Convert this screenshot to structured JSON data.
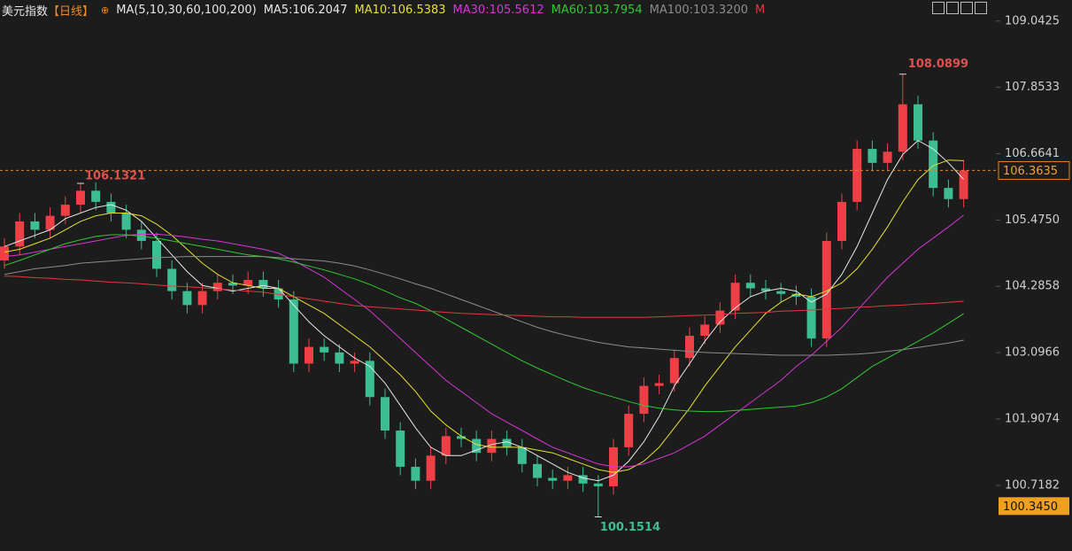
{
  "chart_data": {
    "type": "candlestick",
    "title": "美元指数",
    "period": "【日线】",
    "indicator": "MA(5,10,30,60,100,200)",
    "ylim": [
      99.54,
      109.42
    ],
    "yticks": [
      109.0425,
      107.8533,
      106.6641,
      105.475,
      104.2858,
      103.0966,
      101.9074,
      100.7182
    ],
    "ytick_labels": [
      "109.0425",
      "107.8533",
      "106.6641",
      "105.4750",
      "104.2858",
      "103.0966",
      "101.9074",
      "100.7182"
    ],
    "up_color": "#ef3f46",
    "down_color": "#3dbd92",
    "open": [
      104.75,
      105.0,
      105.45,
      105.3,
      105.55,
      105.75,
      106.0,
      105.8,
      105.6,
      105.3,
      105.1,
      104.6,
      104.2,
      103.95,
      104.2,
      104.35,
      104.3,
      104.4,
      104.25,
      104.05,
      102.9,
      103.2,
      103.1,
      102.9,
      102.95,
      102.3,
      101.7,
      101.05,
      100.8,
      101.25,
      101.6,
      101.55,
      101.3,
      101.55,
      101.4,
      101.1,
      100.85,
      100.8,
      100.9,
      100.75,
      100.7,
      101.4,
      102.0,
      102.5,
      102.55,
      103.0,
      103.4,
      103.6,
      103.85,
      104.35,
      104.25,
      104.2,
      104.15,
      104.1,
      103.35,
      105.1,
      105.8,
      106.75,
      106.5,
      106.7,
      107.55,
      106.9,
      106.05,
      105.85
    ],
    "high": [
      105.15,
      105.6,
      105.6,
      105.7,
      105.9,
      106.1321,
      106.15,
      105.95,
      105.75,
      105.45,
      105.25,
      104.75,
      104.35,
      104.35,
      104.5,
      104.5,
      104.55,
      104.55,
      104.4,
      104.2,
      103.35,
      103.35,
      103.25,
      103.1,
      103.1,
      102.45,
      101.85,
      101.2,
      101.4,
      101.75,
      101.75,
      101.7,
      101.7,
      101.7,
      101.55,
      101.25,
      101.0,
      101.05,
      101.05,
      100.9,
      101.55,
      102.15,
      102.65,
      102.7,
      103.15,
      103.55,
      103.75,
      104.0,
      104.5,
      104.5,
      104.4,
      104.35,
      104.3,
      104.25,
      105.25,
      105.95,
      106.9,
      106.9,
      106.85,
      108.0899,
      107.7,
      107.05,
      106.2,
      106.55
    ],
    "low": [
      104.6,
      104.85,
      105.15,
      105.15,
      105.4,
      105.6,
      105.65,
      105.45,
      105.15,
      104.95,
      104.45,
      104.05,
      103.8,
      103.8,
      104.05,
      104.15,
      104.15,
      104.1,
      103.9,
      102.75,
      102.75,
      102.95,
      102.75,
      102.75,
      102.15,
      101.55,
      100.9,
      100.65,
      100.65,
      101.1,
      101.4,
      101.15,
      101.15,
      101.25,
      100.95,
      100.7,
      100.65,
      100.65,
      100.6,
      100.1514,
      100.55,
      101.25,
      101.85,
      102.35,
      102.4,
      102.85,
      103.25,
      103.45,
      103.7,
      104.1,
      104.05,
      104.0,
      103.95,
      103.2,
      103.2,
      104.95,
      105.65,
      106.35,
      106.35,
      106.55,
      106.75,
      105.9,
      105.7,
      105.7
    ],
    "close": [
      105.0,
      105.45,
      105.3,
      105.55,
      105.75,
      106.0,
      105.8,
      105.6,
      105.3,
      105.1,
      104.6,
      104.2,
      103.95,
      104.2,
      104.35,
      104.3,
      104.4,
      104.25,
      104.05,
      102.9,
      103.2,
      103.1,
      102.9,
      102.95,
      102.3,
      101.7,
      101.05,
      100.8,
      101.25,
      101.6,
      101.55,
      101.3,
      101.55,
      101.4,
      101.1,
      100.85,
      100.8,
      100.9,
      100.75,
      100.7,
      101.4,
      102.0,
      102.5,
      102.55,
      103.0,
      103.4,
      103.6,
      103.85,
      104.35,
      104.25,
      104.2,
      104.15,
      104.1,
      103.35,
      105.1,
      105.8,
      106.75,
      106.5,
      106.7,
      107.55,
      106.9,
      106.05,
      105.85,
      106.3635
    ],
    "series": [
      {
        "name": "MA5:106.2047",
        "color": "#e8e8e8",
        "values": [
          105.0,
          105.1,
          105.2,
          105.3,
          105.5,
          105.6,
          105.7,
          105.75,
          105.65,
          105.45,
          105.15,
          104.85,
          104.55,
          104.3,
          104.25,
          104.2,
          104.25,
          104.3,
          104.25,
          103.95,
          103.65,
          103.4,
          103.2,
          103.0,
          102.85,
          102.55,
          102.15,
          101.75,
          101.4,
          101.25,
          101.25,
          101.35,
          101.45,
          101.5,
          101.4,
          101.25,
          101.1,
          100.95,
          100.85,
          100.8,
          100.9,
          101.15,
          101.5,
          101.95,
          102.5,
          102.9,
          103.3,
          103.65,
          103.9,
          104.1,
          104.2,
          104.25,
          104.2,
          104.0,
          104.15,
          104.5,
          105.0,
          105.6,
          106.2,
          106.65,
          106.9,
          106.75,
          106.5,
          106.2047
        ]
      },
      {
        "name": "MA10:106.5383",
        "color": "#e6e032",
        "values": [
          104.9,
          104.95,
          105.05,
          105.15,
          105.3,
          105.45,
          105.55,
          105.6,
          105.6,
          105.55,
          105.4,
          105.2,
          104.95,
          104.7,
          104.5,
          104.35,
          104.3,
          104.25,
          104.25,
          104.1,
          103.95,
          103.8,
          103.6,
          103.4,
          103.2,
          102.95,
          102.7,
          102.4,
          102.05,
          101.8,
          101.6,
          101.45,
          101.4,
          101.4,
          101.4,
          101.35,
          101.3,
          101.2,
          101.1,
          101.0,
          100.95,
          101.0,
          101.15,
          101.4,
          101.75,
          102.1,
          102.5,
          102.85,
          103.2,
          103.5,
          103.8,
          104.0,
          104.15,
          104.1,
          104.2,
          104.35,
          104.6,
          104.95,
          105.35,
          105.8,
          106.2,
          106.45,
          106.55,
          106.5383
        ]
      },
      {
        "name": "MA30:105.5612",
        "color": "#d636d6",
        "values": [
          104.82,
          104.85,
          104.9,
          104.95,
          105.0,
          105.05,
          105.1,
          105.15,
          105.2,
          105.22,
          105.22,
          105.2,
          105.17,
          105.13,
          105.1,
          105.05,
          105.0,
          104.95,
          104.88,
          104.75,
          104.6,
          104.45,
          104.25,
          104.05,
          103.85,
          103.6,
          103.35,
          103.1,
          102.85,
          102.6,
          102.4,
          102.2,
          102.0,
          101.85,
          101.7,
          101.55,
          101.4,
          101.3,
          101.2,
          101.1,
          101.05,
          101.05,
          101.1,
          101.2,
          101.3,
          101.45,
          101.6,
          101.8,
          102.0,
          102.2,
          102.4,
          102.6,
          102.85,
          103.05,
          103.3,
          103.55,
          103.85,
          104.15,
          104.45,
          104.7,
          104.95,
          105.15,
          105.35,
          105.5612
        ]
      },
      {
        "name": "MA60:103.7954",
        "color": "#32c832",
        "values": [
          104.66,
          104.75,
          104.85,
          104.95,
          105.05,
          105.12,
          105.18,
          105.21,
          105.21,
          105.18,
          105.15,
          105.1,
          105.05,
          105.0,
          104.95,
          104.9,
          104.85,
          104.82,
          104.78,
          104.72,
          104.65,
          104.58,
          104.5,
          104.42,
          104.32,
          104.2,
          104.08,
          103.98,
          103.85,
          103.7,
          103.55,
          103.4,
          103.25,
          103.1,
          102.95,
          102.82,
          102.7,
          102.58,
          102.47,
          102.38,
          102.3,
          102.22,
          102.15,
          102.1,
          102.07,
          102.05,
          102.04,
          102.04,
          102.06,
          102.08,
          102.1,
          102.12,
          102.14,
          102.2,
          102.3,
          102.45,
          102.65,
          102.85,
          103.0,
          103.15,
          103.3,
          103.45,
          103.62,
          103.7954
        ]
      },
      {
        "name": "MA100:103.3200",
        "color": "#8c8c8c",
        "values": [
          104.5,
          104.55,
          104.6,
          104.63,
          104.66,
          104.7,
          104.72,
          104.74,
          104.76,
          104.78,
          104.8,
          104.81,
          104.82,
          104.82,
          104.82,
          104.82,
          104.82,
          104.82,
          104.8,
          104.78,
          104.76,
          104.74,
          104.7,
          104.65,
          104.58,
          104.5,
          104.42,
          104.33,
          104.25,
          104.15,
          104.05,
          103.95,
          103.85,
          103.75,
          103.65,
          103.55,
          103.47,
          103.4,
          103.34,
          103.28,
          103.24,
          103.2,
          103.18,
          103.16,
          103.14,
          103.12,
          103.1,
          103.09,
          103.08,
          103.07,
          103.06,
          103.05,
          103.05,
          103.05,
          103.05,
          103.06,
          103.07,
          103.09,
          103.12,
          103.15,
          103.19,
          103.23,
          103.27,
          103.32
        ]
      },
      {
        "name": "M",
        "color": "#e0393e",
        "values": [
          104.47,
          104.46,
          104.44,
          104.43,
          104.41,
          104.4,
          104.38,
          104.36,
          104.35,
          104.33,
          104.31,
          104.29,
          104.28,
          104.26,
          104.24,
          104.22,
          104.2,
          104.18,
          104.14,
          104.1,
          104.06,
          104.02,
          103.98,
          103.94,
          103.92,
          103.9,
          103.88,
          103.86,
          103.84,
          103.82,
          103.8,
          103.79,
          103.78,
          103.77,
          103.76,
          103.75,
          103.74,
          103.74,
          103.73,
          103.73,
          103.73,
          103.73,
          103.73,
          103.74,
          103.75,
          103.76,
          103.77,
          103.78,
          103.8,
          103.81,
          103.82,
          103.84,
          103.85,
          103.86,
          103.88,
          103.89,
          103.91,
          103.92,
          103.94,
          103.95,
          103.97,
          103.98,
          104.0,
          104.02
        ]
      }
    ],
    "cursor_price": {
      "value": 100.345,
      "label": "100.3450"
    }
  }
}
